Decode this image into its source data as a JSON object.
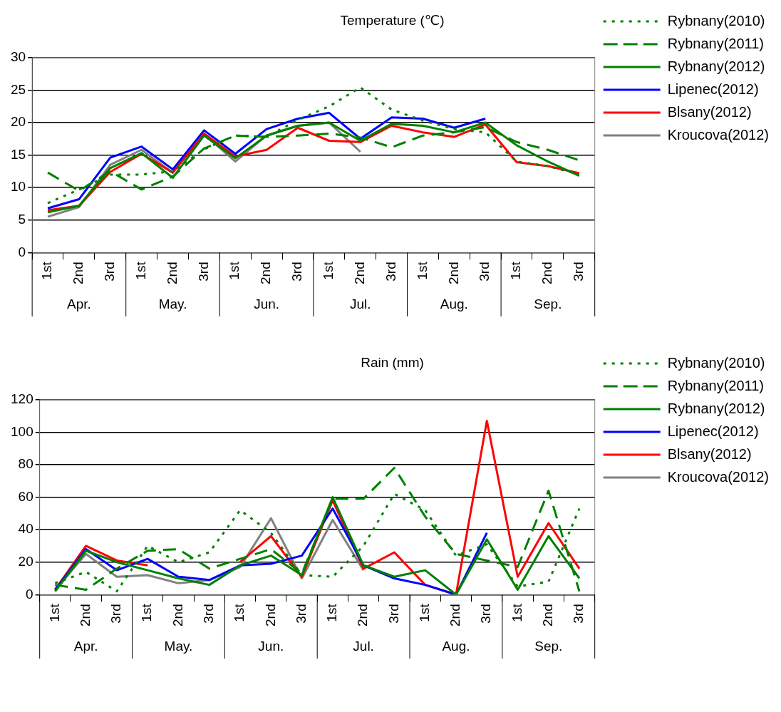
{
  "chart_data": [
    {
      "type": "line",
      "title": "Temperature (℃)",
      "categories": [
        "1st",
        "2nd",
        "3rd",
        "1st",
        "2nd",
        "3rd",
        "1st",
        "2nd",
        "3rd",
        "1st",
        "2nd",
        "3rd",
        "1st",
        "2nd",
        "3rd",
        "1st",
        "2nd",
        "3rd"
      ],
      "annotations": [
        "Apr.",
        "May.",
        "Jun.",
        "Jul.",
        "Aug.",
        "Sep."
      ],
      "ylim": [
        0,
        30
      ],
      "yticks": [
        0,
        5,
        10,
        15,
        20,
        25,
        30
      ],
      "grid": "y",
      "legend": "top right",
      "marker": "none",
      "series": [
        {
          "name": "Rybnany(2010)",
          "color": "#008000",
          "line_style": "dotted",
          "values": [
            7.6,
            9.7,
            12,
            12,
            12.5,
            15.9,
            18,
            17.8,
            20.4,
            22.5,
            25.4,
            22,
            20.3,
            19,
            18.5,
            14,
            13.3,
            12
          ]
        },
        {
          "name": "Rybnany(2011)",
          "color": "#008000",
          "line_style": "dashed",
          "values": [
            12.3,
            9.5,
            12.5,
            9.7,
            11.7,
            16,
            18,
            17.8,
            18,
            18.3,
            17.7,
            16.2,
            18,
            18.5,
            19.3,
            17,
            15.8,
            14.2
          ]
        },
        {
          "name": "Rybnany(2012)",
          "color": "#008000",
          "line_style": "solid",
          "values": [
            6.2,
            7.2,
            13,
            15.3,
            11.5,
            18,
            14.5,
            18,
            19.5,
            20,
            17.2,
            19.8,
            19.5,
            18.5,
            20,
            16.5,
            14,
            11.8
          ]
        },
        {
          "name": "Lipenec(2012)",
          "color": "#0000ff",
          "line_style": "solid",
          "values": [
            6.8,
            8.2,
            14.6,
            16.3,
            12.8,
            18.8,
            15.2,
            19,
            20.6,
            21.5,
            17.5,
            20.8,
            20.6,
            19.2,
            20.6,
            null,
            null,
            null
          ]
        },
        {
          "name": "Blsany(2012)",
          "color": "#ff0000",
          "line_style": "solid",
          "values": [
            6.5,
            7.2,
            12.4,
            15.2,
            12.3,
            18.3,
            14.8,
            15.8,
            19.2,
            17.2,
            17,
            19.5,
            18.5,
            17.8,
            19.7,
            13.9,
            13.3,
            12.2
          ]
        },
        {
          "name": "Kroucova(2012)",
          "color": "#808080",
          "line_style": "solid",
          "values": [
            5.5,
            7,
            13.5,
            15.8,
            12.3,
            18.2,
            14,
            18,
            19.5,
            20,
            15.5,
            null,
            null,
            null,
            null,
            null,
            null,
            null
          ]
        }
      ]
    },
    {
      "type": "line",
      "title": "Rain (mm)",
      "categories": [
        "1st",
        "2nd",
        "3rd",
        "1st",
        "2nd",
        "3rd",
        "1st",
        "2nd",
        "3rd",
        "1st",
        "2nd",
        "3rd",
        "1st",
        "2nd",
        "3rd",
        "1st",
        "2nd",
        "3rd"
      ],
      "annotations": [
        "Apr.",
        "May.",
        "Jun.",
        "Jul.",
        "Aug.",
        "Sep."
      ],
      "ylim": [
        0,
        120
      ],
      "yticks": [
        0,
        20,
        40,
        60,
        80,
        100,
        120
      ],
      "grid": "y",
      "legend": "top right",
      "marker": "none",
      "series": [
        {
          "name": "Rybnany(2010)",
          "color": "#008000",
          "line_style": "dotted",
          "values": [
            7,
            14,
            2,
            30,
            20,
            26,
            52,
            38,
            12,
            11,
            30,
            62,
            52,
            24,
            31,
            5,
            8,
            53
          ]
        },
        {
          "name": "Rybnany(2011)",
          "color": "#008000",
          "line_style": "dashed",
          "values": [
            6,
            3,
            16,
            27,
            28,
            16,
            22,
            28,
            13,
            59,
            59,
            78,
            48,
            25,
            21,
            17,
            64,
            2
          ]
        },
        {
          "name": "Rybnany(2012)",
          "color": "#008000",
          "line_style": "solid",
          "values": [
            2,
            27,
            20,
            15,
            10,
            6,
            18,
            24,
            12,
            60,
            18,
            11,
            15,
            0,
            34,
            3,
            36,
            10
          ]
        },
        {
          "name": "Lipenec(2012)",
          "color": "#0000ff",
          "line_style": "solid",
          "values": [
            3,
            28,
            15,
            22,
            11,
            9,
            18,
            19,
            24,
            53,
            18,
            10,
            6,
            0,
            38,
            null,
            null,
            null
          ]
        },
        {
          "name": "Blsany(2012)",
          "color": "#ff0000",
          "line_style": "solid",
          "values": [
            3,
            30,
            21,
            18,
            null,
            null,
            20,
            36,
            11,
            58,
            16,
            26,
            6,
            0,
            107,
            11,
            44,
            16
          ]
        },
        {
          "name": "Kroucova(2012)",
          "color": "#808080",
          "line_style": "solid",
          "values": [
            3,
            25,
            11,
            12,
            7,
            9,
            17,
            47,
            10,
            46,
            15,
            null,
            null,
            null,
            null,
            null,
            null,
            null
          ]
        }
      ]
    }
  ]
}
